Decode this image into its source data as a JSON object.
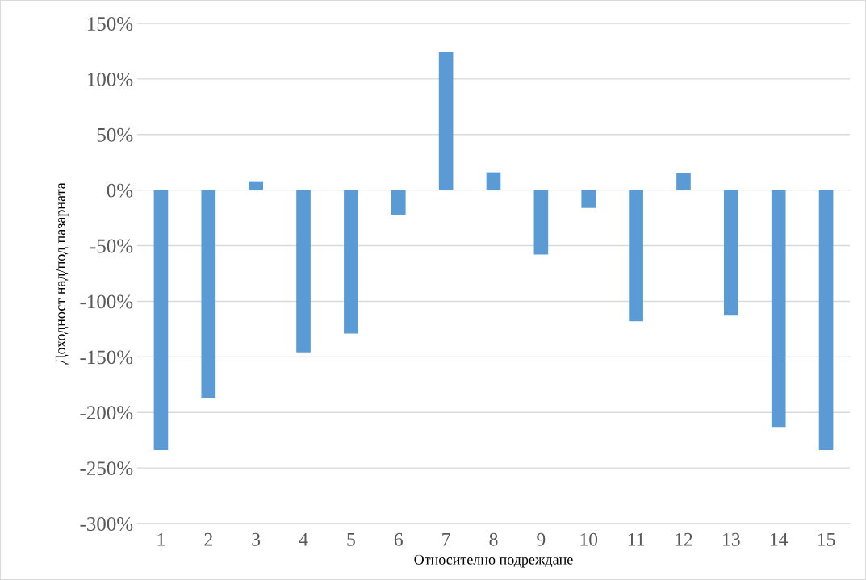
{
  "chart_data": {
    "type": "bar",
    "xlabel": "Относително подреждане",
    "ylabel": "Доходност над/под пазарната",
    "categories": [
      "1",
      "2",
      "3",
      "4",
      "5",
      "6",
      "7",
      "8",
      "9",
      "10",
      "11",
      "12",
      "13",
      "14",
      "15"
    ],
    "values": [
      -234,
      -187,
      8,
      -146,
      -129,
      -22,
      124,
      16,
      -58,
      -16,
      -118,
      15,
      -113,
      -213,
      -234
    ],
    "color": "#5b9bd5",
    "ylim": [
      -300,
      150
    ],
    "yticks": [
      {
        "value": 150,
        "label": "150%"
      },
      {
        "value": 100,
        "label": "100%"
      },
      {
        "value": 50,
        "label": "50%"
      },
      {
        "value": 0,
        "label": "0%"
      },
      {
        "value": -50,
        "label": "-50%"
      },
      {
        "value": -100,
        "label": "-100%"
      },
      {
        "value": -150,
        "label": "-150%"
      },
      {
        "value": -200,
        "label": "-200%"
      },
      {
        "value": -250,
        "label": "-250%"
      },
      {
        "value": -300,
        "label": "-300%"
      }
    ],
    "grid": "y",
    "legend": false
  }
}
